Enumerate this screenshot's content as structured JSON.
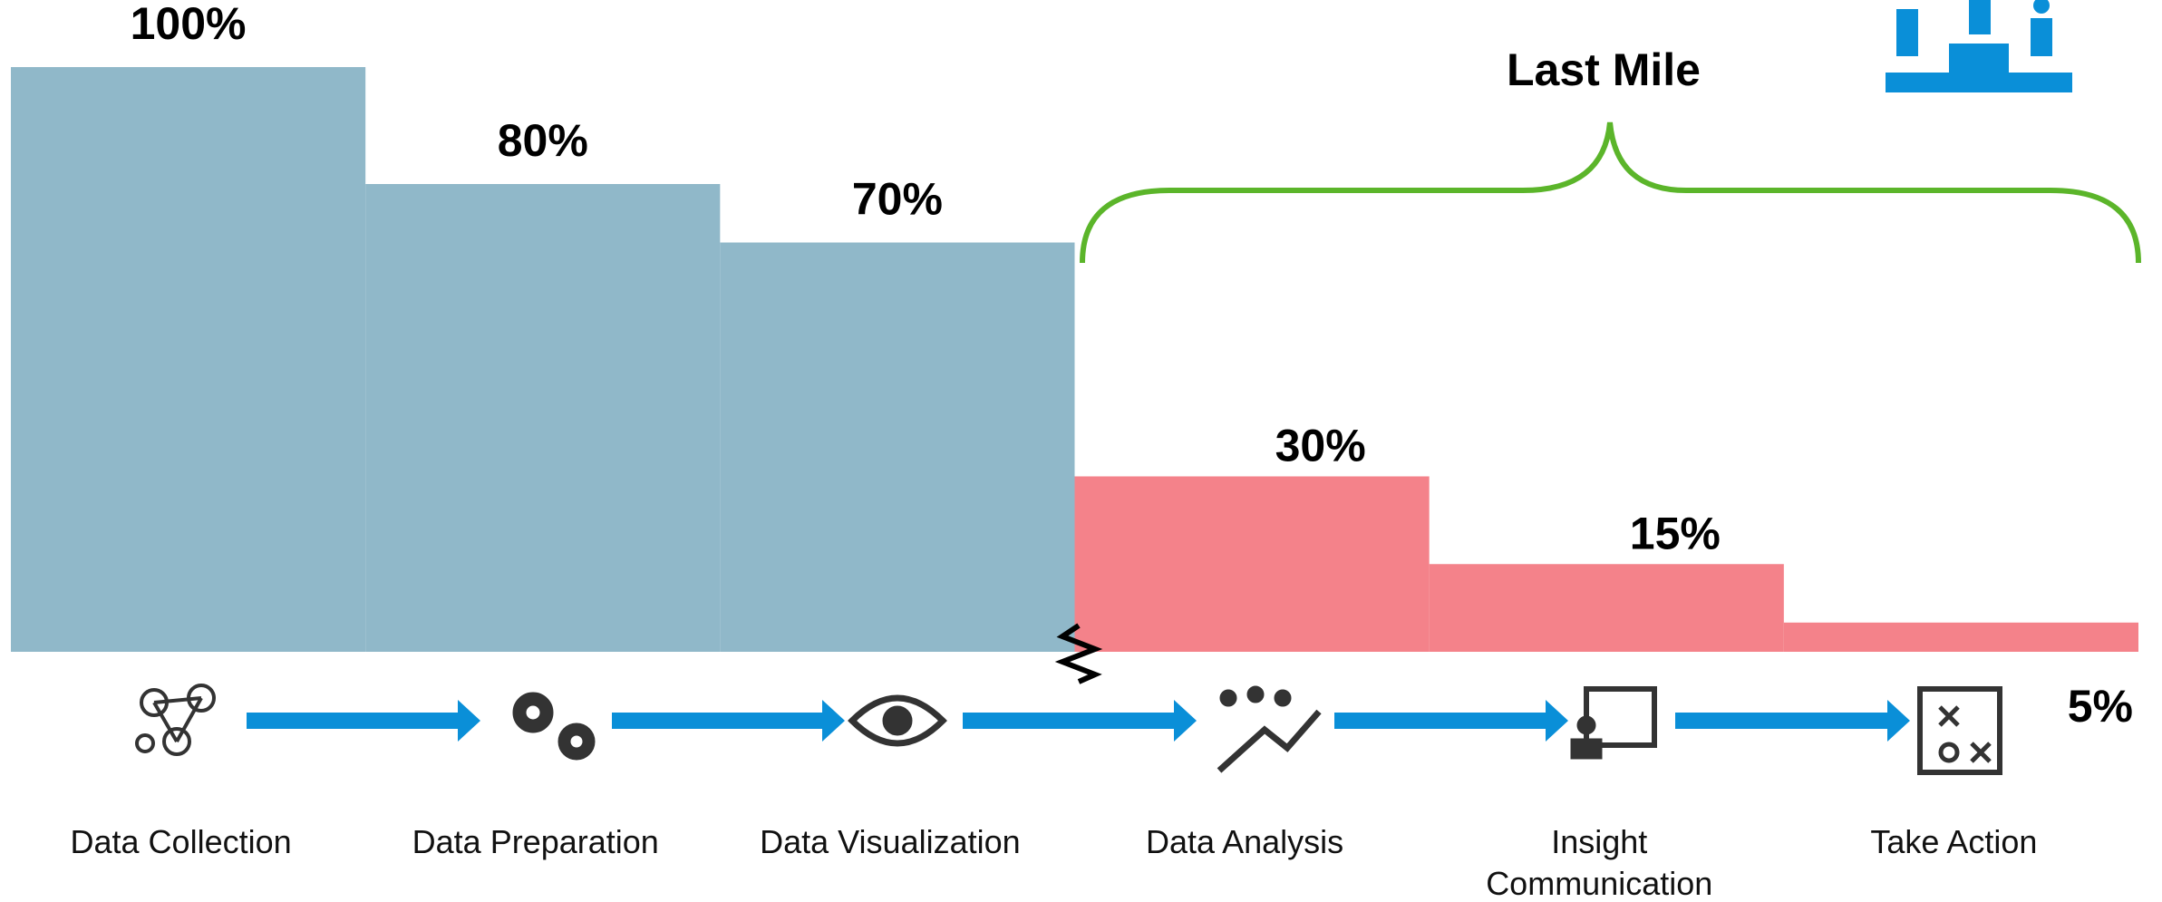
{
  "chart_data": {
    "type": "bar",
    "annotation": "Last Mile",
    "categories": [
      "Data Collection",
      "Data Preparation",
      "Data Visualization",
      "Data Analysis",
      "Insight Communication",
      "Take Action"
    ],
    "values": [
      100,
      80,
      70,
      30,
      15,
      5
    ],
    "value_labels": [
      "100%",
      "80%",
      "70%",
      "30%",
      "15%",
      "5%"
    ],
    "colors": [
      "#90b8c9",
      "#90b8c9",
      "#90b8c9",
      "#f4828a",
      "#f4828a",
      "#f4828a"
    ]
  }
}
